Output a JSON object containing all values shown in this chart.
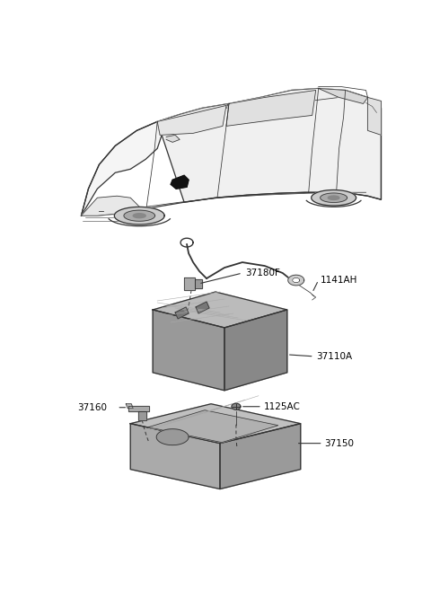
{
  "bg_color": "#ffffff",
  "lc": "#333333",
  "figsize": [
    4.8,
    6.57
  ],
  "dpi": 100,
  "parts": {
    "cable_label": "37180F",
    "bolt_label": "1141AH",
    "battery_label": "37110A",
    "bracket_label": "37160",
    "screw_label": "1125AC",
    "tray_label": "37150"
  },
  "label_fontsize": 7.5
}
